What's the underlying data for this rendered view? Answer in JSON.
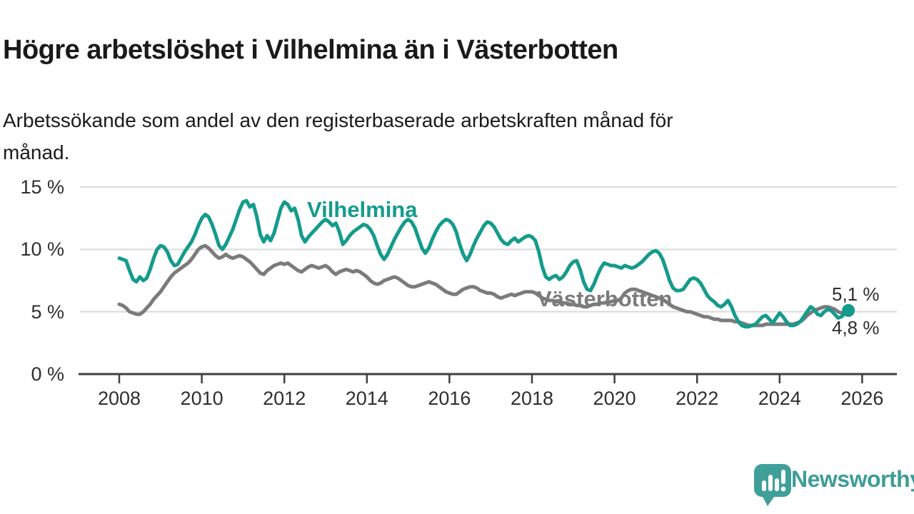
{
  "header": {
    "title": "Högre arbetslöshet i Vilhelmina än i Västerbotten",
    "subtitle_lines": [
      "Arbetssökande som andel av den registerbaserade arbetskraften månad för",
      "månad."
    ]
  },
  "footer": {
    "brand": "Newsworthy",
    "logo_icon": "bar-chart-speech-bubble-icon"
  },
  "colors": {
    "vilhelmina": "#149B8C",
    "vasterbotten": "#7B7B7B",
    "grid": "#D9D9D9",
    "axis": "#3F3F3F",
    "text": "#1A1A1A",
    "brand_teal": "#3FA09A"
  },
  "chart_data": {
    "type": "line",
    "unit": "%",
    "title": "Högre arbetslöshet i Vilhelmina än i Västerbotten",
    "x_start_year": 2008,
    "x_points_per_year": 12,
    "x_tick_years": [
      2008,
      2010,
      2012,
      2014,
      2016,
      2018,
      2020,
      2022,
      2024,
      2026
    ],
    "ylim": [
      0,
      15
    ],
    "y_ticks": [
      {
        "value": 0,
        "label": "0 %"
      },
      {
        "value": 5,
        "label": "5 %"
      },
      {
        "value": 10,
        "label": "10 %"
      },
      {
        "value": 15,
        "label": "15 %"
      }
    ],
    "grid": true,
    "legend_position": "inline",
    "series": [
      {
        "name": "Vilhelmina",
        "color": "#149B8C",
        "end_label": "5,1 %",
        "end_value": 5.1,
        "values": [
          9.3,
          9.2,
          9.1,
          8.3,
          7.6,
          7.4,
          7.8,
          7.5,
          7.7,
          8.4,
          9.3,
          10.0,
          10.3,
          10.2,
          9.8,
          9.1,
          8.7,
          8.8,
          9.3,
          9.8,
          10.2,
          10.6,
          11.2,
          11.9,
          12.5,
          12.8,
          12.6,
          12.0,
          11.2,
          10.3,
          10.0,
          10.4,
          11.0,
          11.6,
          12.4,
          13.2,
          13.8,
          13.9,
          13.4,
          13.6,
          12.6,
          11.2,
          10.6,
          11.1,
          10.7,
          11.3,
          12.3,
          13.3,
          13.8,
          13.6,
          13.1,
          13.3,
          12.4,
          11.1,
          10.6,
          11.0,
          11.3,
          11.6,
          11.9,
          12.2,
          12.4,
          12.2,
          11.9,
          12.1,
          11.4,
          10.4,
          10.7,
          11.1,
          11.4,
          11.6,
          11.8,
          12.0,
          11.9,
          11.6,
          11.1,
          10.3,
          9.6,
          9.2,
          9.6,
          10.2,
          10.8,
          11.3,
          11.8,
          12.2,
          12.4,
          12.2,
          11.7,
          10.9,
          10.1,
          9.7,
          10.1,
          10.8,
          11.4,
          11.9,
          12.2,
          12.4,
          12.3,
          12.0,
          11.4,
          10.4,
          9.6,
          9.1,
          9.6,
          10.3,
          10.9,
          11.4,
          11.9,
          12.2,
          12.1,
          11.8,
          11.3,
          10.8,
          10.5,
          10.4,
          10.7,
          10.9,
          10.6,
          10.8,
          11.0,
          11.1,
          11.0,
          10.7,
          9.8,
          8.6,
          7.8,
          7.6,
          7.8,
          7.9,
          7.6,
          7.8,
          8.2,
          8.7,
          9.0,
          9.1,
          8.4,
          7.4,
          6.8,
          6.7,
          7.2,
          7.9,
          8.5,
          8.9,
          8.8,
          8.7,
          8.7,
          8.6,
          8.5,
          8.7,
          8.6,
          8.5,
          8.6,
          8.8,
          9.0,
          9.3,
          9.6,
          9.8,
          9.9,
          9.7,
          9.2,
          8.4,
          7.5,
          6.9,
          6.7,
          6.7,
          6.8,
          7.2,
          7.6,
          7.7,
          7.6,
          7.3,
          6.8,
          6.3,
          6.0,
          5.8,
          5.5,
          5.4,
          5.6,
          5.9,
          5.4,
          4.7,
          4.2,
          3.9,
          3.8,
          3.8,
          3.9,
          4.0,
          4.3,
          4.6,
          4.7,
          4.4,
          4.1,
          4.5,
          4.9,
          4.6,
          4.2,
          3.9,
          3.9,
          4.0,
          4.2,
          4.6,
          5.0,
          5.4,
          5.2,
          4.8,
          4.7,
          5.0,
          5.2,
          5.1,
          4.8,
          4.5,
          4.6,
          4.9,
          5.1
        ]
      },
      {
        "name": "Västerbotten",
        "color": "#7B7B7B",
        "end_label": "4,8 %",
        "end_value": 4.8,
        "values": [
          5.6,
          5.5,
          5.3,
          5.0,
          4.9,
          4.8,
          4.8,
          5.0,
          5.3,
          5.6,
          6.0,
          6.3,
          6.6,
          7.0,
          7.4,
          7.8,
          8.1,
          8.3,
          8.5,
          8.7,
          8.9,
          9.2,
          9.6,
          10.0,
          10.2,
          10.3,
          10.1,
          9.8,
          9.5,
          9.3,
          9.4,
          9.6,
          9.4,
          9.3,
          9.4,
          9.5,
          9.4,
          9.2,
          9.0,
          8.7,
          8.4,
          8.1,
          8.0,
          8.3,
          8.5,
          8.7,
          8.8,
          8.9,
          8.8,
          8.9,
          8.7,
          8.5,
          8.3,
          8.2,
          8.4,
          8.6,
          8.7,
          8.6,
          8.5,
          8.6,
          8.7,
          8.5,
          8.2,
          8.0,
          8.2,
          8.3,
          8.4,
          8.3,
          8.2,
          8.3,
          8.2,
          8.0,
          7.8,
          7.5,
          7.3,
          7.2,
          7.3,
          7.5,
          7.6,
          7.7,
          7.8,
          7.7,
          7.5,
          7.3,
          7.1,
          7.0,
          7.0,
          7.1,
          7.2,
          7.3,
          7.4,
          7.3,
          7.2,
          7.0,
          6.8,
          6.6,
          6.5,
          6.4,
          6.4,
          6.6,
          6.8,
          6.9,
          7.0,
          7.0,
          6.9,
          6.7,
          6.6,
          6.5,
          6.5,
          6.4,
          6.2,
          6.1,
          6.2,
          6.3,
          6.4,
          6.3,
          6.4,
          6.5,
          6.6,
          6.6,
          6.6,
          6.5,
          6.3,
          6.1,
          6.0,
          5.9,
          5.9,
          5.8,
          5.8,
          5.7,
          5.7,
          5.6,
          5.6,
          5.5,
          5.5,
          5.4,
          5.4,
          5.5,
          5.6,
          5.6,
          5.7,
          5.7,
          5.8,
          5.8,
          5.9,
          5.9,
          6.1,
          6.5,
          6.7,
          6.8,
          6.8,
          6.7,
          6.6,
          6.5,
          6.4,
          6.3,
          6.2,
          6.1,
          6.0,
          5.8,
          5.6,
          5.4,
          5.3,
          5.2,
          5.1,
          5.0,
          5.0,
          4.9,
          4.8,
          4.7,
          4.6,
          4.6,
          4.5,
          4.4,
          4.4,
          4.3,
          4.3,
          4.3,
          4.3,
          4.2,
          4.2,
          4.1,
          4.0,
          3.9,
          3.9,
          3.9,
          3.9,
          3.9,
          4.0,
          4.0,
          4.0,
          4.0,
          4.0,
          4.0,
          4.0,
          4.0,
          4.0,
          4.1,
          4.2,
          4.4,
          4.7,
          4.9,
          5.1,
          5.2,
          5.3,
          5.4,
          5.4,
          5.3,
          5.2,
          5.0,
          4.9,
          4.8,
          4.8
        ]
      }
    ]
  }
}
